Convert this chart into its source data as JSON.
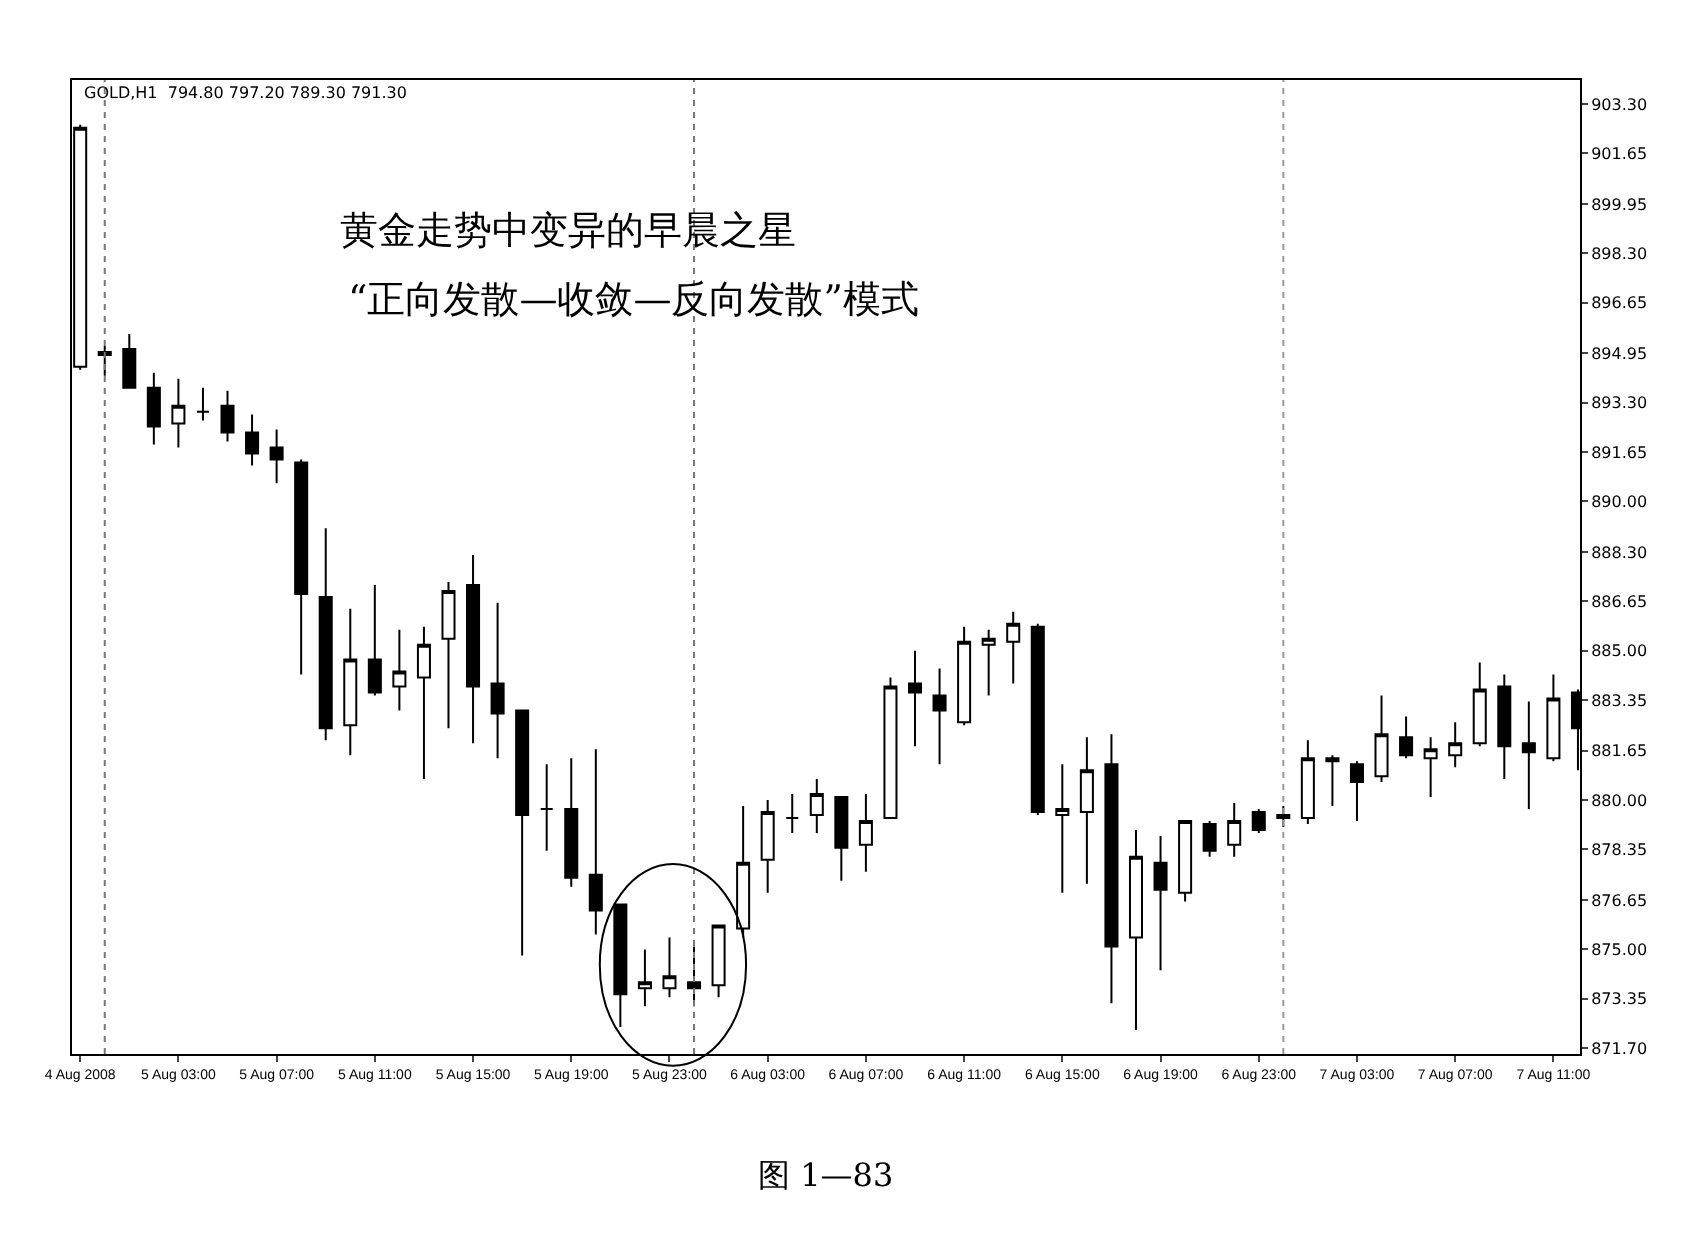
{
  "chart_data": {
    "type": "candlestick",
    "title": "黄金走势中变异的早晨之星",
    "subtitle": "“正向发散—收敛—反向发散”模式",
    "annotations": [
      "GOLD,H1  794.80 797.20 789.30 791.30",
      "图 1—83"
    ],
    "x": [
      "2008-08-04T23:00",
      "2008-08-05T00:00",
      "2008-08-05T01:00",
      "2008-08-05T02:00",
      "2008-08-05T03:00",
      "2008-08-05T04:00",
      "2008-08-05T05:00",
      "2008-08-05T06:00",
      "2008-08-05T07:00",
      "2008-08-05T08:00",
      "2008-08-05T09:00",
      "2008-08-05T10:00",
      "2008-08-05T11:00",
      "2008-08-05T12:00",
      "2008-08-05T13:00",
      "2008-08-05T14:00",
      "2008-08-05T15:00",
      "2008-08-05T16:00",
      "2008-08-05T17:00",
      "2008-08-05T18:00",
      "2008-08-05T19:00",
      "2008-08-05T20:00",
      "2008-08-05T21:00",
      "2008-08-05T22:00",
      "2008-08-05T23:00",
      "2008-08-06T00:00",
      "2008-08-06T01:00",
      "2008-08-06T02:00",
      "2008-08-06T03:00",
      "2008-08-06T04:00",
      "2008-08-06T05:00",
      "2008-08-06T06:00",
      "2008-08-06T07:00",
      "2008-08-06T08:00",
      "2008-08-06T09:00",
      "2008-08-06T10:00",
      "2008-08-06T11:00",
      "2008-08-06T12:00",
      "2008-08-06T13:00",
      "2008-08-06T14:00",
      "2008-08-06T15:00",
      "2008-08-06T16:00",
      "2008-08-06T17:00",
      "2008-08-06T18:00",
      "2008-08-06T19:00",
      "2008-08-06T20:00",
      "2008-08-06T21:00",
      "2008-08-06T22:00",
      "2008-08-06T23:00",
      "2008-08-07T00:00",
      "2008-08-07T01:00",
      "2008-08-07T02:00",
      "2008-08-07T03:00",
      "2008-08-07T04:00",
      "2008-08-07T05:00",
      "2008-08-07T06:00",
      "2008-08-07T07:00",
      "2008-08-07T08:00",
      "2008-08-07T09:00",
      "2008-08-07T10:00",
      "2008-08-07T11:00",
      "2008-08-07T12:00"
    ],
    "ohlc": [
      [
        894.5,
        902.6,
        894.4,
        902.5
      ],
      [
        894.9,
        895.2,
        894.2,
        895.0
      ],
      [
        895.1,
        895.6,
        893.8,
        893.8
      ],
      [
        893.8,
        894.3,
        891.9,
        892.5
      ],
      [
        892.6,
        894.1,
        891.8,
        893.2
      ],
      [
        893.0,
        893.8,
        892.7,
        893.0
      ],
      [
        893.2,
        893.7,
        892.0,
        892.3
      ],
      [
        892.3,
        892.9,
        891.2,
        891.6
      ],
      [
        891.8,
        892.4,
        890.6,
        891.4
      ],
      [
        891.3,
        891.4,
        884.2,
        886.9
      ],
      [
        886.8,
        889.1,
        882.0,
        882.4
      ],
      [
        882.5,
        886.4,
        881.5,
        884.7
      ],
      [
        884.7,
        887.2,
        883.5,
        883.6
      ],
      [
        883.8,
        885.7,
        883.0,
        884.3
      ],
      [
        884.1,
        885.8,
        880.7,
        885.2
      ],
      [
        885.4,
        887.3,
        882.4,
        887.0
      ],
      [
        887.2,
        888.2,
        881.9,
        883.8
      ],
      [
        883.9,
        886.6,
        881.4,
        882.9
      ],
      [
        883.0,
        883.0,
        874.8,
        879.5
      ],
      [
        879.7,
        881.2,
        878.3,
        879.7
      ],
      [
        879.7,
        881.4,
        877.1,
        877.4
      ],
      [
        877.5,
        881.7,
        875.5,
        876.3
      ],
      [
        876.5,
        876.5,
        872.4,
        873.5
      ],
      [
        873.7,
        875.0,
        873.1,
        873.9
      ],
      [
        873.7,
        875.4,
        873.4,
        874.1
      ],
      [
        873.9,
        875.1,
        873.1,
        873.7
      ],
      [
        873.8,
        875.8,
        873.4,
        875.8
      ],
      [
        875.7,
        879.8,
        875.4,
        877.9
      ],
      [
        878.0,
        880.0,
        876.9,
        879.6
      ],
      [
        879.4,
        880.2,
        878.9,
        879.4
      ],
      [
        879.5,
        880.7,
        878.9,
        880.2
      ],
      [
        880.1,
        880.1,
        877.3,
        878.4
      ],
      [
        878.5,
        880.2,
        877.6,
        879.3
      ],
      [
        879.4,
        884.1,
        879.4,
        883.8
      ],
      [
        883.9,
        885.0,
        881.8,
        883.6
      ],
      [
        883.5,
        884.4,
        881.2,
        883.0
      ],
      [
        882.6,
        885.8,
        882.5,
        885.3
      ],
      [
        885.2,
        885.7,
        883.5,
        885.4
      ],
      [
        885.3,
        886.3,
        883.9,
        885.9
      ],
      [
        885.8,
        885.9,
        879.5,
        879.6
      ],
      [
        879.5,
        881.2,
        876.9,
        879.7
      ],
      [
        879.6,
        882.1,
        877.2,
        881.0
      ],
      [
        881.2,
        882.2,
        873.2,
        875.1
      ],
      [
        875.4,
        879.0,
        872.3,
        878.1
      ],
      [
        877.9,
        878.8,
        874.3,
        877.0
      ],
      [
        876.9,
        879.3,
        876.6,
        879.3
      ],
      [
        879.2,
        879.3,
        878.1,
        878.3
      ],
      [
        878.5,
        879.9,
        878.1,
        879.3
      ],
      [
        879.6,
        879.7,
        878.9,
        879.0
      ],
      [
        879.5,
        879.8,
        879.1,
        879.4
      ],
      [
        879.4,
        882.0,
        879.2,
        881.4
      ],
      [
        881.3,
        881.5,
        879.8,
        881.4
      ],
      [
        881.2,
        881.3,
        879.3,
        880.6
      ],
      [
        880.8,
        883.5,
        880.6,
        882.2
      ],
      [
        882.1,
        882.8,
        881.4,
        881.5
      ],
      [
        881.4,
        882.1,
        880.1,
        881.7
      ],
      [
        881.5,
        882.6,
        881.1,
        881.9
      ],
      [
        881.9,
        884.6,
        881.8,
        883.7
      ],
      [
        883.8,
        884.2,
        880.7,
        881.8
      ],
      [
        881.9,
        883.3,
        879.7,
        881.6
      ],
      [
        881.4,
        884.2,
        881.3,
        883.4
      ],
      [
        883.6,
        883.7,
        881.0,
        882.4
      ]
    ],
    "color": "#000000",
    "xlim": [
      "2008-08-04T22:40",
      "2008-08-07T12:05"
    ],
    "xticks": [
      {
        "value": "2008-08-04T23:00",
        "label": "4 Aug 2008"
      },
      {
        "value": "2008-08-05T03:00",
        "label": "5 Aug 03:00"
      },
      {
        "value": "2008-08-05T07:00",
        "label": "5 Aug 07:00"
      },
      {
        "value": "2008-08-05T11:00",
        "label": "5 Aug 11:00"
      },
      {
        "value": "2008-08-05T15:00",
        "label": "5 Aug 15:00"
      },
      {
        "value": "2008-08-05T19:00",
        "label": "5 Aug 19:00"
      },
      {
        "value": "2008-08-05T23:00",
        "label": "5 Aug 23:00"
      },
      {
        "value": "2008-08-06T03:00",
        "label": "6 Aug 03:00"
      },
      {
        "value": "2008-08-06T07:00",
        "label": "6 Aug 07:00"
      },
      {
        "value": "2008-08-06T11:00",
        "label": "6 Aug 11:00"
      },
      {
        "value": "2008-08-06T15:00",
        "label": "6 Aug 15:00"
      },
      {
        "value": "2008-08-06T19:00",
        "label": "6 Aug 19:00"
      },
      {
        "value": "2008-08-06T23:00",
        "label": "6 Aug 23:00"
      },
      {
        "value": "2008-08-07T03:00",
        "label": "7 Aug 03:00"
      },
      {
        "value": "2008-08-07T07:00",
        "label": "7 Aug 07:00"
      },
      {
        "value": "2008-08-07T11:00",
        "label": "7 Aug 11:00"
      }
    ],
    "ylim": [
      871.5,
      904.1
    ],
    "yticks": [
      {
        "value": 903.3,
        "label": "903.30"
      },
      901.65,
      899.95,
      {
        "value": 898.3,
        "label": "898.30"
      },
      896.65,
      894.95,
      {
        "value": 893.3,
        "label": "893.30"
      },
      891.65,
      {
        "value": 890,
        "label": "890.00"
      },
      {
        "value": 888.3,
        "label": "888.30"
      },
      886.65,
      {
        "value": 885,
        "label": "885.00"
      },
      883.35,
      881.65,
      {
        "value": 880,
        "label": "880.00"
      },
      878.35,
      876.65,
      {
        "value": 875,
        "label": "875.00"
      },
      873.35,
      {
        "value": 871.7,
        "label": "871.70"
      }
    ],
    "ref_lines": [
      {
        "axis": "x",
        "value": "2008-08-05T00:00",
        "color": "#777777",
        "line_style": "dotted"
      },
      {
        "axis": "x",
        "value": "2008-08-06T00:00",
        "color": "#777777",
        "line_style": "dotted"
      },
      {
        "axis": "x",
        "value": "2008-08-07T00:00",
        "color": "#999999",
        "line_style": "dotted"
      }
    ]
  }
}
